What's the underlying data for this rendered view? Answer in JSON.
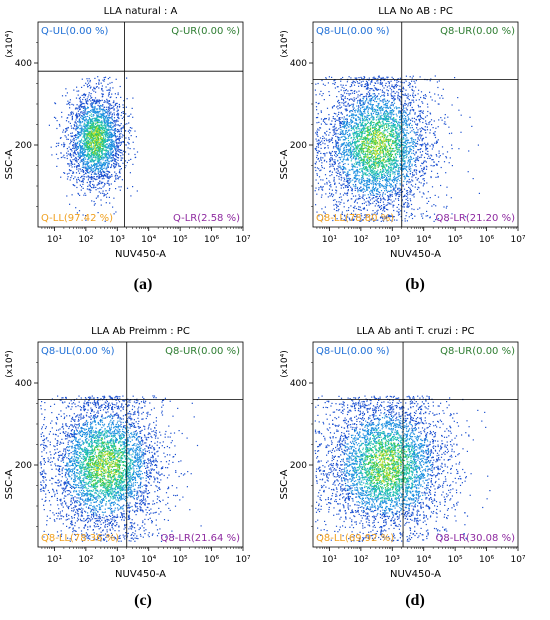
{
  "chart_data": [
    {
      "type": "scatter",
      "panel_label": "(a)",
      "title": "LLA natural : A",
      "xlabel": "NUV450-A",
      "ylabel": "SSC-A",
      "y_exponent": "(x10⁴)",
      "x_scale": "log",
      "xlim": [
        3,
        10000000
      ],
      "ylim": [
        0,
        500
      ],
      "x_ticks": [
        "10¹",
        "10²",
        "10³",
        "10⁴",
        "10⁵",
        "10⁶",
        "10⁷"
      ],
      "y_ticks": [
        "200",
        "400"
      ],
      "gate": {
        "x": 1700,
        "y": 380
      },
      "quadrants": {
        "ul": {
          "label": "Q-UL(0.00 %)",
          "color": "#1f6fd6"
        },
        "ur": {
          "label": "Q-UR(0.00 %)",
          "color": "#2e7d32"
        },
        "ll": {
          "label": "Q-LL(97.42 %)",
          "color": "#f0a020"
        },
        "lr": {
          "label": "Q-LR(2.58 %)",
          "color": "#8e2aa0"
        }
      },
      "density": {
        "x_center_log": 2.3,
        "x_spread_log": 0.45,
        "y_center": 215,
        "y_spread": 60,
        "x_max_log": 4.0,
        "count": 2600
      }
    },
    {
      "type": "scatter",
      "panel_label": "(b)",
      "title": "LLA No AB : PC",
      "xlabel": "NUV450-A",
      "ylabel": "SSC-A",
      "y_exponent": "(x10⁴)",
      "x_scale": "log",
      "xlim": [
        3,
        10000000
      ],
      "ylim": [
        0,
        500
      ],
      "x_ticks": [
        "10¹",
        "10²",
        "10³",
        "10⁴",
        "10⁵",
        "10⁶",
        "10⁷"
      ],
      "y_ticks": [
        "200",
        "400"
      ],
      "gate": {
        "x": 2000,
        "y": 360
      },
      "quadrants": {
        "ul": {
          "label": "Q8-UL(0.00 %)",
          "color": "#1f6fd6"
        },
        "ur": {
          "label": "Q8-UR(0.00 %)",
          "color": "#2e7d32"
        },
        "ll": {
          "label": "Q8-LL(78.80 %)",
          "color": "#f0a020"
        },
        "lr": {
          "label": "Q8-LR(21.20 %)",
          "color": "#8e2aa0"
        }
      },
      "density": {
        "x_center_log": 2.5,
        "x_spread_log": 0.9,
        "y_center": 200,
        "y_spread": 85,
        "x_max_log": 6.1,
        "count": 4200
      }
    },
    {
      "type": "scatter",
      "panel_label": "(c)",
      "title": "LLA Ab Preimm : PC",
      "xlabel": "NUV450-A",
      "ylabel": "SSC-A",
      "y_exponent": "(x10⁴)",
      "x_scale": "log",
      "xlim": [
        3,
        10000000
      ],
      "ylim": [
        0,
        500
      ],
      "x_ticks": [
        "10¹",
        "10²",
        "10³",
        "10⁴",
        "10⁵",
        "10⁶",
        "10⁷"
      ],
      "y_ticks": [
        "200",
        "400"
      ],
      "gate": {
        "x": 2000,
        "y": 360
      },
      "quadrants": {
        "ul": {
          "label": "Q8-UL(0.00 %)",
          "color": "#1f6fd6"
        },
        "ur": {
          "label": "Q8-UR(0.00 %)",
          "color": "#2e7d32"
        },
        "ll": {
          "label": "Q8-LL(78.36 %)",
          "color": "#f0a020"
        },
        "lr": {
          "label": "Q8-LR(21.64 %)",
          "color": "#8e2aa0"
        }
      },
      "density": {
        "x_center_log": 2.6,
        "x_spread_log": 0.9,
        "y_center": 200,
        "y_spread": 85,
        "x_max_log": 6.0,
        "count": 4200
      }
    },
    {
      "type": "scatter",
      "panel_label": "(d)",
      "title": "LLA Ab anti T. cruzi : PC",
      "xlabel": "NUV450-A",
      "ylabel": "SSC-A",
      "y_exponent": "(x10⁴)",
      "x_scale": "log",
      "xlim": [
        3,
        10000000
      ],
      "ylim": [
        0,
        500
      ],
      "x_ticks": [
        "10¹",
        "10²",
        "10³",
        "10⁴",
        "10⁵",
        "10⁶",
        "10⁷"
      ],
      "y_ticks": [
        "200",
        "400"
      ],
      "gate": {
        "x": 2200,
        "y": 360
      },
      "quadrants": {
        "ul": {
          "label": "Q8-UL(0.00 %)",
          "color": "#1f6fd6"
        },
        "ur": {
          "label": "Q8-UR(0.00 %)",
          "color": "#2e7d32"
        },
        "ll": {
          "label": "Q8-LL(69.92 %)",
          "color": "#f0a020"
        },
        "lr": {
          "label": "Q8-LR(30.08 %)",
          "color": "#8e2aa0"
        }
      },
      "density": {
        "x_center_log": 2.8,
        "x_spread_log": 1.0,
        "y_center": 200,
        "y_spread": 85,
        "x_max_log": 6.1,
        "count": 4400
      }
    }
  ]
}
